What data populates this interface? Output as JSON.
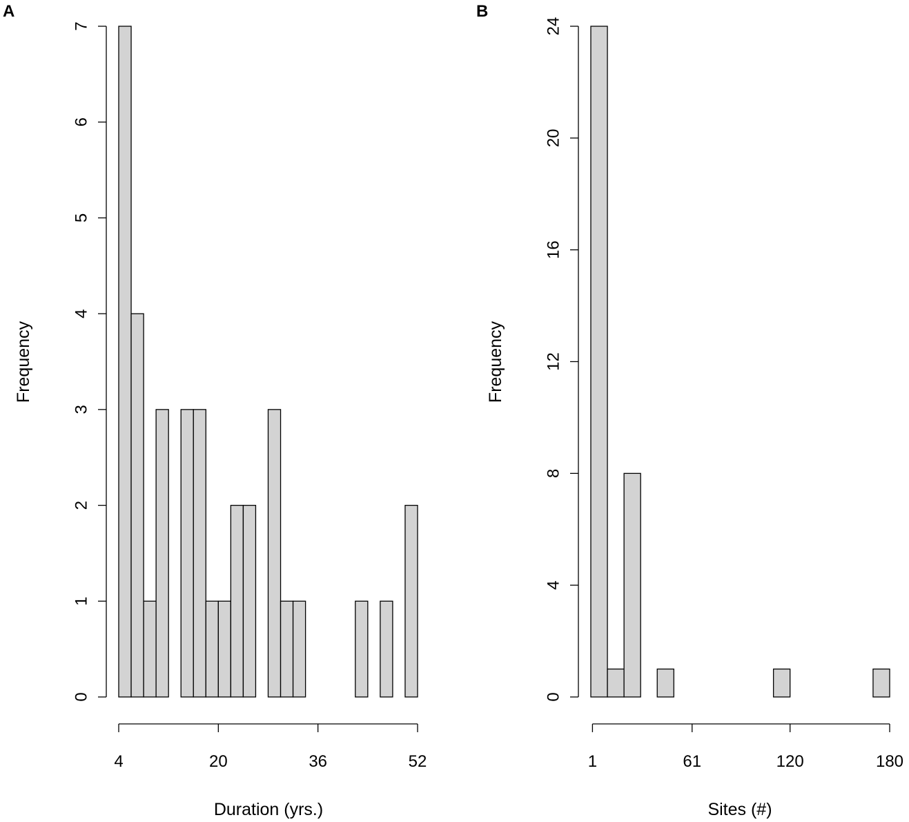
{
  "colors": {
    "bar_fill": "#d3d3d3",
    "bar_stroke": "#000000",
    "background": "#ffffff"
  },
  "chart_data": [
    {
      "type": "bar",
      "panel": "A",
      "xlabel": "Duration (yrs.)",
      "ylabel": "Frequency",
      "xticks": [
        "4",
        "20",
        "36",
        "52"
      ],
      "yticks": [
        "0",
        "1",
        "2",
        "3",
        "4",
        "5",
        "6",
        "7"
      ],
      "xlim": [
        4,
        52
      ],
      "ylim": [
        0,
        7
      ],
      "bin_width": 2,
      "bins": [
        {
          "x0": 4,
          "x1": 6,
          "count": 7
        },
        {
          "x0": 6,
          "x1": 8,
          "count": 4
        },
        {
          "x0": 8,
          "x1": 10,
          "count": 1
        },
        {
          "x0": 10,
          "x1": 12,
          "count": 3
        },
        {
          "x0": 14,
          "x1": 16,
          "count": 3
        },
        {
          "x0": 16,
          "x1": 18,
          "count": 3
        },
        {
          "x0": 18,
          "x1": 20,
          "count": 1
        },
        {
          "x0": 20,
          "x1": 22,
          "count": 1
        },
        {
          "x0": 22,
          "x1": 24,
          "count": 2
        },
        {
          "x0": 24,
          "x1": 26,
          "count": 2
        },
        {
          "x0": 28,
          "x1": 30,
          "count": 3
        },
        {
          "x0": 30,
          "x1": 32,
          "count": 1
        },
        {
          "x0": 32,
          "x1": 34,
          "count": 1
        },
        {
          "x0": 42,
          "x1": 44,
          "count": 1
        },
        {
          "x0": 46,
          "x1": 48,
          "count": 1
        },
        {
          "x0": 50,
          "x1": 52,
          "count": 2
        }
      ],
      "grid": false
    },
    {
      "type": "bar",
      "panel": "B",
      "xlabel": "Sites (#)",
      "ylabel": "Frequency",
      "xticks": [
        "1",
        "61",
        "120",
        "180"
      ],
      "yticks": [
        "0",
        "4",
        "8",
        "12",
        "16",
        "20",
        "24"
      ],
      "xlim": [
        0,
        180
      ],
      "ylim": [
        0,
        24
      ],
      "bin_width": 10,
      "bins": [
        {
          "x0": 0,
          "x1": 10,
          "count": 24
        },
        {
          "x0": 10,
          "x1": 20,
          "count": 1
        },
        {
          "x0": 20,
          "x1": 30,
          "count": 8
        },
        {
          "x0": 30,
          "x1": 40,
          "count": 0
        },
        {
          "x0": 40,
          "x1": 50,
          "count": 1
        },
        {
          "x0": 50,
          "x1": 60,
          "count": 0
        },
        {
          "x0": 60,
          "x1": 70,
          "count": 0
        },
        {
          "x0": 70,
          "x1": 80,
          "count": 0
        },
        {
          "x0": 80,
          "x1": 90,
          "count": 0
        },
        {
          "x0": 90,
          "x1": 100,
          "count": 0
        },
        {
          "x0": 100,
          "x1": 110,
          "count": 0
        },
        {
          "x0": 110,
          "x1": 120,
          "count": 1
        },
        {
          "x0": 120,
          "x1": 130,
          "count": 0
        },
        {
          "x0": 130,
          "x1": 140,
          "count": 0
        },
        {
          "x0": 140,
          "x1": 150,
          "count": 0
        },
        {
          "x0": 150,
          "x1": 160,
          "count": 0
        },
        {
          "x0": 160,
          "x1": 170,
          "count": 0
        },
        {
          "x0": 170,
          "x1": 180,
          "count": 1
        }
      ],
      "grid": false
    }
  ]
}
